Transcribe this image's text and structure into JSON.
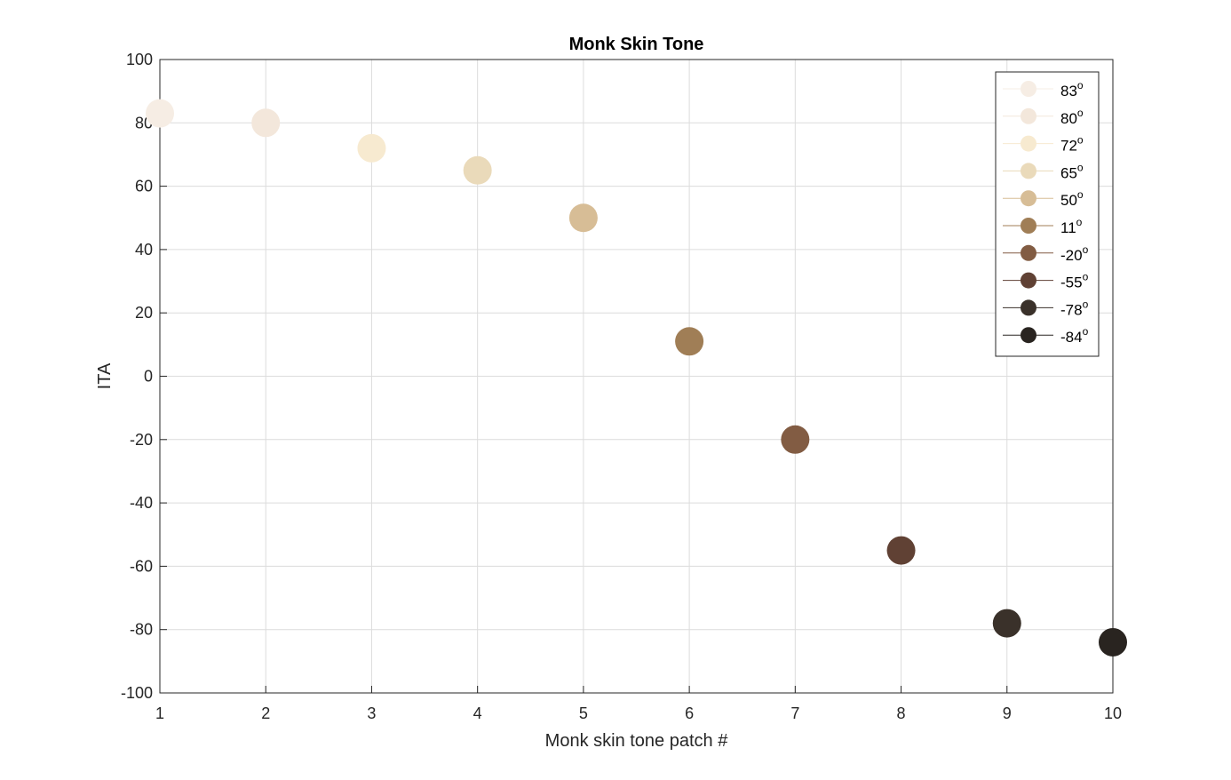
{
  "chart_data": {
    "type": "scatter",
    "title": "Monk Skin Tone",
    "xlabel": "Monk skin tone patch #",
    "ylabel": "ITA",
    "xlim": [
      1,
      10
    ],
    "ylim": [
      -100,
      100
    ],
    "xticks": [
      "1",
      "2",
      "3",
      "4",
      "5",
      "6",
      "7",
      "8",
      "9",
      "10"
    ],
    "yticks": [
      "-100",
      "-80",
      "-60",
      "-40",
      "-20",
      "0",
      "20",
      "40",
      "60",
      "80",
      "100"
    ],
    "grid": true,
    "legend_position": "top-right",
    "series": [
      {
        "name": "83",
        "x": 1,
        "y": 83,
        "color": "#f6ede4"
      },
      {
        "name": "80",
        "x": 2,
        "y": 80,
        "color": "#f3e7db"
      },
      {
        "name": "72",
        "x": 3,
        "y": 72,
        "color": "#f7ead0"
      },
      {
        "name": "65",
        "x": 4,
        "y": 65,
        "color": "#eadaba"
      },
      {
        "name": "50",
        "x": 5,
        "y": 50,
        "color": "#d7bd96"
      },
      {
        "name": "11",
        "x": 6,
        "y": 11,
        "color": "#a07e56"
      },
      {
        "name": "-20",
        "x": 7,
        "y": -20,
        "color": "#825c43"
      },
      {
        "name": "-55",
        "x": 8,
        "y": -55,
        "color": "#604134"
      },
      {
        "name": "-78",
        "x": 9,
        "y": -78,
        "color": "#3a312a"
      },
      {
        "name": "-84",
        "x": 10,
        "y": -84,
        "color": "#292420"
      }
    ],
    "legend_unit": "o"
  }
}
